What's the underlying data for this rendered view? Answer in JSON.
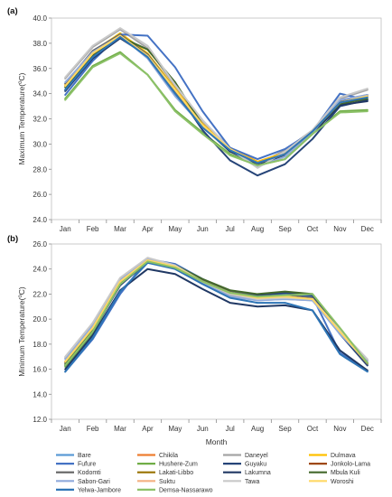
{
  "chart_data": [
    {
      "type": "line",
      "panel_label": "(a)",
      "ylabel": "Maximum Temperature(oC)",
      "ylim": [
        24.0,
        40.0
      ],
      "ytick_step": 2.0,
      "categories": [
        "Jan",
        "Feb",
        "Mar",
        "Apr",
        "May",
        "Jun",
        "Jul",
        "Aug",
        "Sep",
        "Oct",
        "Nov",
        "Dec"
      ],
      "series": [
        {
          "name": "Bare",
          "color": "#5B9BD5",
          "values": [
            34.5,
            37.0,
            38.6,
            37.0,
            34.2,
            31.5,
            29.6,
            28.5,
            29.2,
            30.9,
            33.3,
            33.9
          ]
        },
        {
          "name": "Chikila",
          "color": "#ED7D31",
          "values": [
            34.6,
            37.2,
            38.7,
            37.1,
            34.3,
            31.6,
            29.7,
            28.6,
            29.3,
            31.0,
            33.4,
            33.8
          ]
        },
        {
          "name": "Daneyel",
          "color": "#A5A5A5",
          "values": [
            35.2,
            37.7,
            39.1,
            37.6,
            34.6,
            31.8,
            29.7,
            28.4,
            29.5,
            31.1,
            33.6,
            34.3
          ]
        },
        {
          "name": "Dulmava",
          "color": "#FFC000",
          "values": [
            34.7,
            37.3,
            38.8,
            37.2,
            34.4,
            31.6,
            29.6,
            28.6,
            29.3,
            31.0,
            33.3,
            33.7
          ]
        },
        {
          "name": "Fufure",
          "color": "#4472C4",
          "values": [
            33.9,
            36.6,
            38.7,
            38.6,
            36.1,
            32.6,
            29.7,
            28.8,
            29.6,
            31.0,
            34.0,
            33.5
          ]
        },
        {
          "name": "Hushere-Zum",
          "color": "#70AD47",
          "values": [
            33.6,
            36.2,
            37.3,
            35.5,
            32.7,
            30.9,
            29.2,
            28.3,
            28.8,
            30.8,
            32.6,
            32.7
          ]
        },
        {
          "name": "Guyaku",
          "color": "#264478",
          "values": [
            34.3,
            36.9,
            38.5,
            37.1,
            34.3,
            31.1,
            28.7,
            27.5,
            28.4,
            30.4,
            33.0,
            33.5
          ]
        },
        {
          "name": "Jonkolo-Lama",
          "color": "#9E480E",
          "values": [
            34.6,
            37.1,
            38.6,
            37.0,
            34.3,
            31.5,
            29.6,
            28.5,
            29.2,
            31.0,
            33.3,
            33.8
          ]
        },
        {
          "name": "Kodomti",
          "color": "#636363",
          "values": [
            34.8,
            37.4,
            38.7,
            37.1,
            34.1,
            31.5,
            29.6,
            28.5,
            29.2,
            31.0,
            33.4,
            33.9
          ]
        },
        {
          "name": "Lakati-Libbo",
          "color": "#997300",
          "values": [
            34.6,
            37.2,
            38.6,
            37.0,
            34.3,
            31.5,
            29.6,
            28.5,
            29.2,
            31.0,
            33.3,
            33.8
          ]
        },
        {
          "name": "Lakumna",
          "color": "#203864",
          "values": [
            34.2,
            36.8,
            38.4,
            37.0,
            34.3,
            31.4,
            29.4,
            28.4,
            29.1,
            30.8,
            33.1,
            33.4
          ]
        },
        {
          "name": "Mbula Kuli",
          "color": "#43682B",
          "values": [
            34.5,
            37.0,
            38.5,
            37.5,
            34.9,
            31.5,
            29.5,
            28.5,
            29.2,
            31.0,
            33.2,
            33.6
          ]
        },
        {
          "name": "Sabon-Gari",
          "color": "#8FAADC",
          "values": [
            34.9,
            37.3,
            38.6,
            36.8,
            33.8,
            31.4,
            29.6,
            28.2,
            29.0,
            30.9,
            33.5,
            33.9
          ]
        },
        {
          "name": "Suktu",
          "color": "#F4B183",
          "values": [
            34.6,
            37.2,
            38.6,
            37.0,
            34.3,
            31.5,
            29.6,
            28.5,
            29.2,
            31.0,
            33.3,
            33.8
          ]
        },
        {
          "name": "Tawa",
          "color": "#C9C9C9",
          "values": [
            35.3,
            37.8,
            39.2,
            37.8,
            34.7,
            31.9,
            29.6,
            28.1,
            29.4,
            31.1,
            33.7,
            34.4
          ]
        },
        {
          "name": "Woroshi",
          "color": "#FFD966",
          "values": [
            34.6,
            37.2,
            38.6,
            37.0,
            34.3,
            31.5,
            29.6,
            28.5,
            29.2,
            31.0,
            33.3,
            33.8
          ]
        },
        {
          "name": "Yelwa-Jambore",
          "color": "#2E75B6",
          "values": [
            34.3,
            36.9,
            38.5,
            36.9,
            34.0,
            31.3,
            29.5,
            28.5,
            29.2,
            31.0,
            33.3,
            33.7
          ]
        },
        {
          "name": "Demsa-Nassarawo",
          "color": "#8CC168",
          "values": [
            33.5,
            36.1,
            37.2,
            35.5,
            32.6,
            30.8,
            29.1,
            28.3,
            28.8,
            30.8,
            32.5,
            32.6
          ]
        }
      ]
    },
    {
      "type": "line",
      "panel_label": "(b)",
      "ylabel": "Minimum Temperature(oC)",
      "xlabel": "Month",
      "ylim": [
        12.0,
        26.0
      ],
      "ytick_step": 2.0,
      "categories": [
        "Jan",
        "Feb",
        "Mar",
        "Apr",
        "May",
        "Jun",
        "Jul",
        "Aug",
        "Sep",
        "Oct",
        "Nov",
        "Dec"
      ],
      "series": [
        {
          "name": "Bare",
          "color": "#5B9BD5",
          "values": [
            16.6,
            19.3,
            23.0,
            24.7,
            24.2,
            23.1,
            22.1,
            21.7,
            21.7,
            21.5,
            19.0,
            16.5
          ]
        },
        {
          "name": "Chikila",
          "color": "#ED7D31",
          "values": [
            16.6,
            19.3,
            23.0,
            24.7,
            24.2,
            23.0,
            22.1,
            21.7,
            21.8,
            21.6,
            19.0,
            16.5
          ]
        },
        {
          "name": "Daneyel",
          "color": "#A5A5A5",
          "values": [
            16.9,
            19.6,
            23.2,
            24.8,
            24.2,
            22.9,
            21.9,
            21.5,
            21.6,
            21.5,
            19.0,
            16.7
          ]
        },
        {
          "name": "Dulmava",
          "color": "#FFC000",
          "values": [
            16.6,
            19.3,
            23.0,
            24.7,
            24.2,
            23.0,
            22.1,
            21.7,
            21.8,
            21.6,
            19.0,
            16.5
          ]
        },
        {
          "name": "Fufure",
          "color": "#4472C4",
          "values": [
            15.8,
            18.4,
            22.0,
            24.8,
            24.4,
            23.2,
            22.2,
            21.9,
            22.0,
            21.8,
            17.3,
            15.9
          ]
        },
        {
          "name": "Hushere-Zum",
          "color": "#70AD47",
          "values": [
            16.2,
            18.9,
            22.8,
            24.5,
            24.1,
            23.0,
            22.1,
            21.8,
            21.9,
            22.0,
            19.2,
            16.4
          ]
        },
        {
          "name": "Guyaku",
          "color": "#264478",
          "values": [
            16.3,
            19.0,
            22.7,
            24.6,
            24.2,
            23.1,
            22.2,
            21.9,
            22.1,
            21.9,
            18.8,
            16.3
          ]
        },
        {
          "name": "Jonkolo-Lama",
          "color": "#9E480E",
          "values": [
            16.6,
            19.3,
            23.0,
            24.7,
            24.2,
            23.0,
            22.1,
            21.7,
            21.8,
            21.6,
            19.0,
            16.5
          ]
        },
        {
          "name": "Kodomti",
          "color": "#636363",
          "values": [
            16.5,
            19.2,
            22.9,
            24.7,
            24.2,
            23.1,
            22.2,
            21.8,
            21.9,
            21.7,
            19.0,
            16.4
          ]
        },
        {
          "name": "Lakati-Libbo",
          "color": "#997300",
          "values": [
            16.6,
            19.3,
            23.0,
            24.7,
            24.2,
            23.0,
            22.1,
            21.7,
            21.8,
            21.6,
            19.0,
            16.5
          ]
        },
        {
          "name": "Lakumna",
          "color": "#203864",
          "values": [
            16.0,
            18.7,
            22.3,
            24.0,
            23.6,
            22.4,
            21.3,
            21.0,
            21.1,
            20.7,
            17.5,
            15.9
          ]
        },
        {
          "name": "Mbula Kuli",
          "color": "#43682B",
          "values": [
            16.4,
            19.1,
            22.8,
            24.7,
            24.3,
            23.2,
            22.3,
            22.0,
            22.2,
            22.0,
            19.2,
            16.5
          ]
        },
        {
          "name": "Sabon-Gari",
          "color": "#8FAADC",
          "values": [
            16.8,
            19.5,
            23.1,
            24.8,
            24.2,
            22.9,
            21.8,
            21.5,
            21.6,
            21.5,
            18.8,
            16.6
          ]
        },
        {
          "name": "Suktu",
          "color": "#F4B183",
          "values": [
            16.6,
            19.3,
            23.0,
            24.7,
            24.2,
            23.0,
            22.1,
            21.7,
            21.8,
            21.6,
            19.0,
            16.5
          ]
        },
        {
          "name": "Tawa",
          "color": "#C9C9C9",
          "values": [
            17.0,
            19.7,
            23.3,
            24.9,
            24.3,
            23.0,
            22.0,
            21.6,
            21.7,
            21.6,
            19.1,
            16.8
          ]
        },
        {
          "name": "Woroshi",
          "color": "#FFD966",
          "values": [
            16.6,
            19.3,
            23.0,
            24.7,
            24.2,
            23.0,
            22.1,
            21.7,
            21.8,
            21.6,
            19.0,
            16.5
          ]
        },
        {
          "name": "Yelwa-Jambore",
          "color": "#2E75B6",
          "values": [
            15.8,
            18.5,
            22.2,
            24.5,
            24.0,
            22.8,
            21.7,
            21.3,
            21.3,
            20.7,
            17.2,
            15.8
          ]
        },
        {
          "name": "Demsa-Nassarawo",
          "color": "#8CC168",
          "values": [
            16.3,
            19.0,
            22.8,
            24.6,
            24.1,
            23.0,
            22.1,
            21.8,
            21.9,
            22.0,
            19.3,
            16.5
          ]
        }
      ]
    }
  ]
}
